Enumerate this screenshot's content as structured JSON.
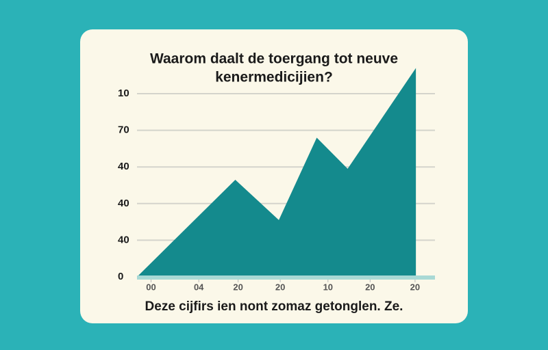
{
  "chart_data": {
    "type": "area",
    "title": [
      "Waarom daalt de toergang tot neuve",
      "kenermedicijien?"
    ],
    "note": "Deze cijfirs ien nont zomaz getonglen. Ze.",
    "x": [
      0,
      35,
      50.5,
      64,
      75,
      99.3
    ],
    "values": [
      0,
      53,
      31,
      76,
      59,
      114
    ],
    "color": "#148a8d",
    "xlim": [
      0,
      100
    ],
    "ylim": [
      0,
      115
    ],
    "xticks": [
      {
        "value": 5,
        "label": "00"
      },
      {
        "value": 22,
        "label": "04"
      },
      {
        "value": 36,
        "label": "20"
      },
      {
        "value": 51,
        "label": "20"
      },
      {
        "value": 68,
        "label": "10"
      },
      {
        "value": 83,
        "label": "20"
      },
      {
        "value": 99,
        "label": "20"
      }
    ],
    "yticks": [
      0,
      {
        "value": 20,
        "label": "40"
      },
      40,
      {
        "value": 60,
        "label": "40"
      },
      {
        "value": 80,
        "label": "70"
      },
      {
        "value": 100,
        "label": "10"
      }
    ],
    "grid": true
  }
}
